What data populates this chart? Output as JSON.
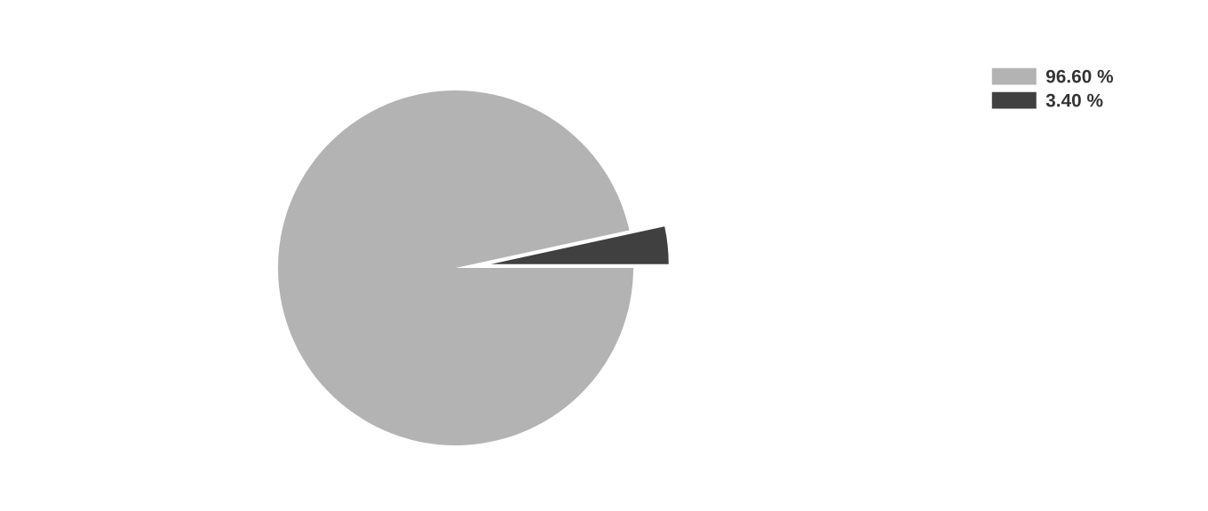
{
  "chart_data": {
    "type": "pie",
    "categories": [
      "96.60 %",
      "3.40 %"
    ],
    "values": [
      96.6,
      3.4
    ],
    "colors": [
      "#b3b3b3",
      "#404040"
    ],
    "legend": "top right"
  }
}
